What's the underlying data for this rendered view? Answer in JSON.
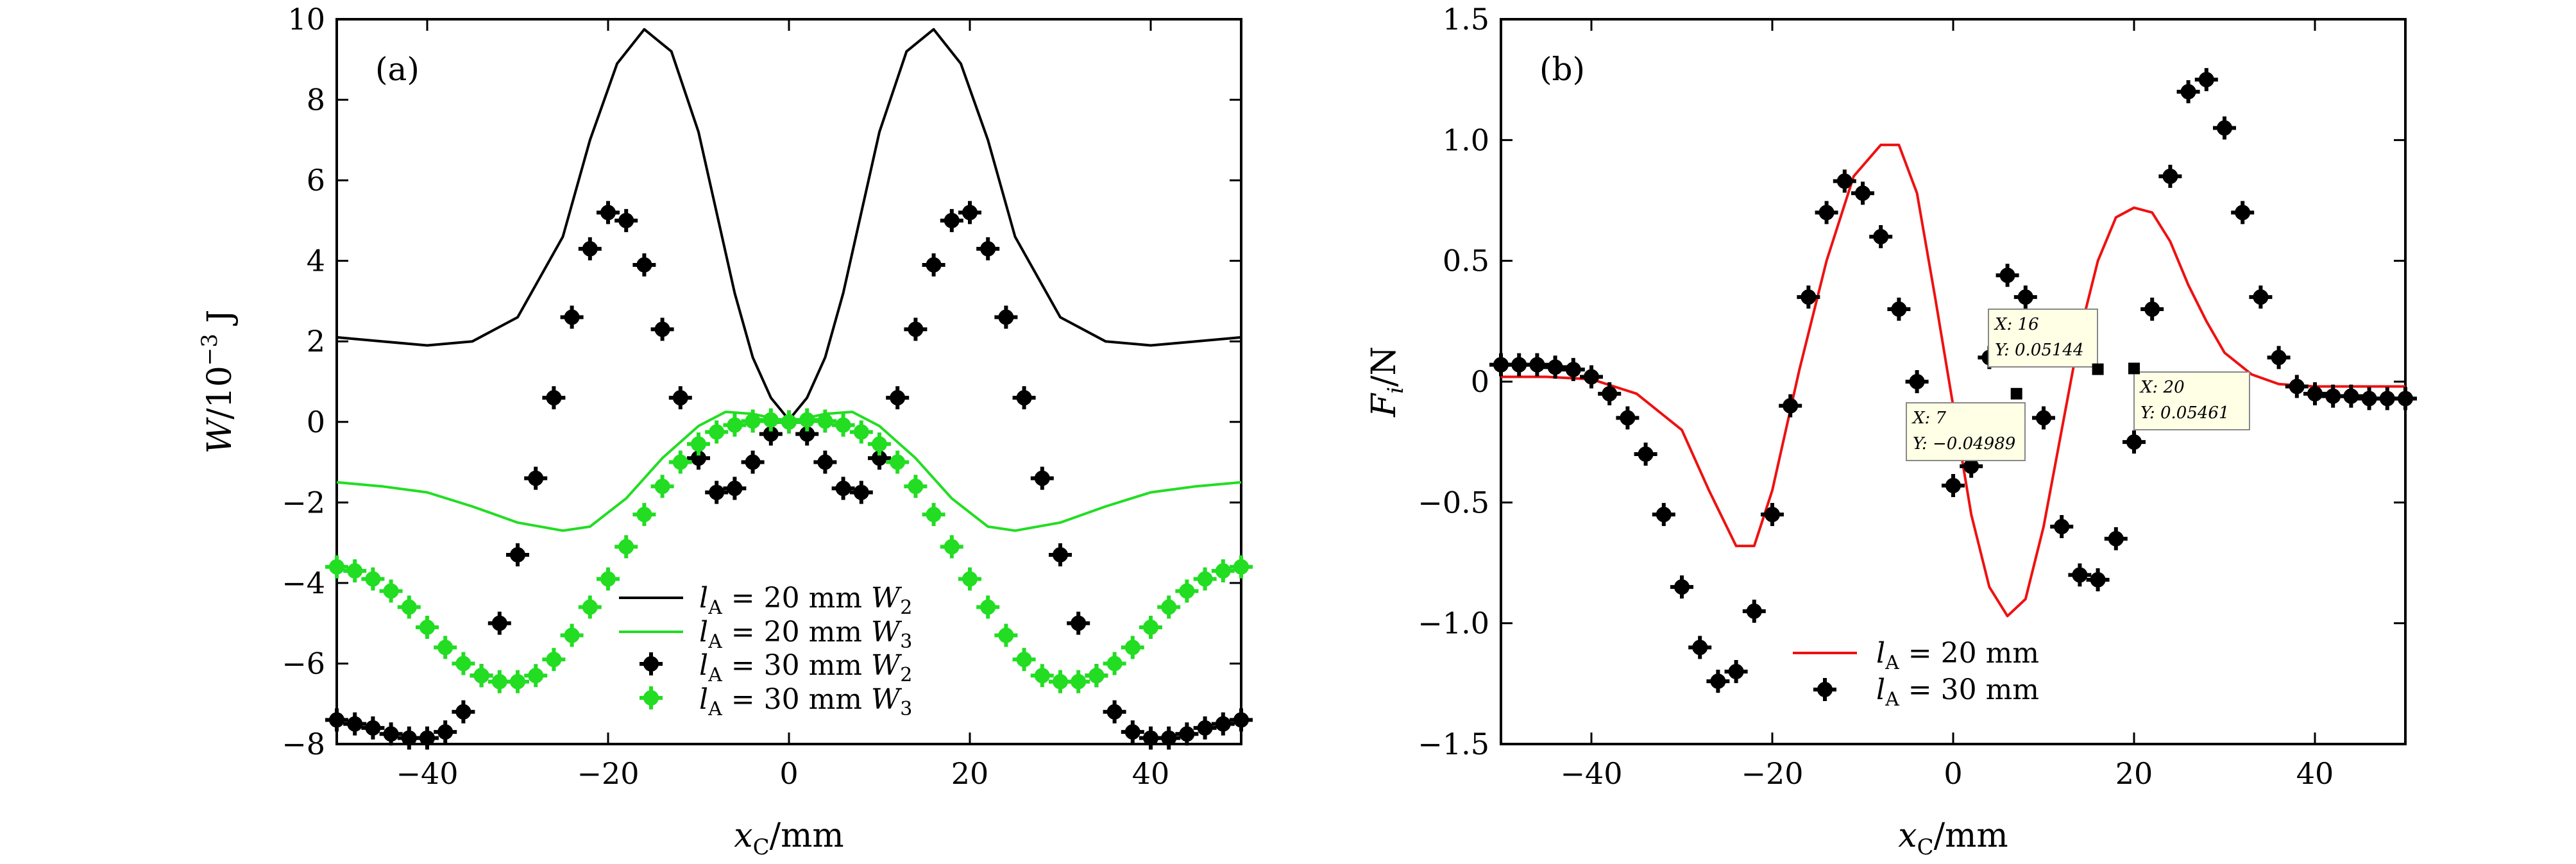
{
  "chart_data": [
    {
      "panel_label": "(a)",
      "type": "line",
      "xlabel": "x_C/mm",
      "ylabel": "W/10^-3 J",
      "xlim": [
        -50,
        50
      ],
      "ylim": [
        -8,
        10
      ],
      "xticks": [
        -40,
        -20,
        0,
        20,
        40
      ],
      "yticks": [
        -8,
        -6,
        -4,
        -2,
        0,
        2,
        4,
        6,
        8,
        10
      ],
      "tick_labels_x": [
        "−40",
        "−20",
        "0",
        "20",
        "40"
      ],
      "tick_labels_y": [
        "−8",
        "−6",
        "−4",
        "−2",
        "0",
        "2",
        "4",
        "6",
        "8",
        "10"
      ],
      "legend_position": "lower-center",
      "series": [
        {
          "name": "l_A = 20 mm W_2",
          "style": "line",
          "color": "#000000",
          "points": [
            [
              -50,
              2.1
            ],
            [
              -45,
              2.0
            ],
            [
              -40,
              1.9
            ],
            [
              -35,
              2.0
            ],
            [
              -30,
              2.6
            ],
            [
              -25,
              4.6
            ],
            [
              -22,
              7.0
            ],
            [
              -19,
              8.9
            ],
            [
              -16,
              9.75
            ],
            [
              -13,
              9.2
            ],
            [
              -10,
              7.2
            ],
            [
              -8,
              5.2
            ],
            [
              -6,
              3.2
            ],
            [
              -4,
              1.6
            ],
            [
              -2,
              0.6
            ],
            [
              0,
              0.05
            ],
            [
              2,
              0.6
            ],
            [
              4,
              1.6
            ],
            [
              6,
              3.2
            ],
            [
              8,
              5.2
            ],
            [
              10,
              7.2
            ],
            [
              13,
              9.2
            ],
            [
              16,
              9.75
            ],
            [
              19,
              8.9
            ],
            [
              22,
              7.0
            ],
            [
              25,
              4.6
            ],
            [
              30,
              2.6
            ],
            [
              35,
              2.0
            ],
            [
              40,
              1.9
            ],
            [
              45,
              2.0
            ],
            [
              50,
              2.1
            ]
          ]
        },
        {
          "name": "l_A = 20 mm W_3",
          "style": "line",
          "color": "#22dd22",
          "points": [
            [
              -50,
              -1.5
            ],
            [
              -45,
              -1.6
            ],
            [
              -40,
              -1.75
            ],
            [
              -35,
              -2.1
            ],
            [
              -30,
              -2.5
            ],
            [
              -25,
              -2.7
            ],
            [
              -22,
              -2.6
            ],
            [
              -18,
              -1.9
            ],
            [
              -14,
              -0.9
            ],
            [
              -10,
              -0.1
            ],
            [
              -7,
              0.25
            ],
            [
              -4,
              0.2
            ],
            [
              -2,
              0.1
            ],
            [
              0,
              0.0
            ],
            [
              2,
              0.1
            ],
            [
              4,
              0.2
            ],
            [
              7,
              0.25
            ],
            [
              10,
              -0.1
            ],
            [
              14,
              -0.9
            ],
            [
              18,
              -1.9
            ],
            [
              22,
              -2.6
            ],
            [
              25,
              -2.7
            ],
            [
              30,
              -2.5
            ],
            [
              35,
              -2.1
            ],
            [
              40,
              -1.75
            ],
            [
              45,
              -1.6
            ],
            [
              50,
              -1.5
            ]
          ]
        },
        {
          "name": "l_A = 30 mm W_2",
          "style": "marker",
          "color": "#000000",
          "points": [
            [
              -50,
              -7.4
            ],
            [
              -48,
              -7.5
            ],
            [
              -46,
              -7.6
            ],
            [
              -44,
              -7.75
            ],
            [
              -42,
              -7.85
            ],
            [
              -40,
              -7.85
            ],
            [
              -38,
              -7.7
            ],
            [
              -36,
              -7.2
            ],
            [
              -34,
              -6.3
            ],
            [
              -32,
              -5.0
            ],
            [
              -30,
              -3.3
            ],
            [
              -28,
              -1.4
            ],
            [
              -26,
              0.6
            ],
            [
              -24,
              2.6
            ],
            [
              -22,
              4.3
            ],
            [
              -20,
              5.2
            ],
            [
              -18,
              5.0
            ],
            [
              -16,
              3.9
            ],
            [
              -14,
              2.3
            ],
            [
              -12,
              0.6
            ],
            [
              -10,
              -0.9
            ],
            [
              -8,
              -1.75
            ],
            [
              -6,
              -1.65
            ],
            [
              -4,
              -1.0
            ],
            [
              -2,
              -0.3
            ],
            [
              0,
              0.0
            ],
            [
              2,
              -0.3
            ],
            [
              4,
              -1.0
            ],
            [
              6,
              -1.65
            ],
            [
              8,
              -1.75
            ],
            [
              10,
              -0.9
            ],
            [
              12,
              0.6
            ],
            [
              14,
              2.3
            ],
            [
              16,
              3.9
            ],
            [
              18,
              5.0
            ],
            [
              20,
              5.2
            ],
            [
              22,
              4.3
            ],
            [
              24,
              2.6
            ],
            [
              26,
              0.6
            ],
            [
              28,
              -1.4
            ],
            [
              30,
              -3.3
            ],
            [
              32,
              -5.0
            ],
            [
              34,
              -6.3
            ],
            [
              36,
              -7.2
            ],
            [
              38,
              -7.7
            ],
            [
              40,
              -7.85
            ],
            [
              42,
              -7.85
            ],
            [
              44,
              -7.75
            ],
            [
              46,
              -7.6
            ],
            [
              48,
              -7.5
            ],
            [
              50,
              -7.4
            ]
          ]
        },
        {
          "name": "l_A = 30 mm W_3",
          "style": "marker",
          "color": "#22dd22",
          "points": [
            [
              -50,
              -3.6
            ],
            [
              -48,
              -3.7
            ],
            [
              -46,
              -3.9
            ],
            [
              -44,
              -4.2
            ],
            [
              -42,
              -4.6
            ],
            [
              -40,
              -5.1
            ],
            [
              -38,
              -5.6
            ],
            [
              -36,
              -6.0
            ],
            [
              -34,
              -6.3
            ],
            [
              -32,
              -6.45
            ],
            [
              -30,
              -6.45
            ],
            [
              -28,
              -6.3
            ],
            [
              -26,
              -5.9
            ],
            [
              -24,
              -5.3
            ],
            [
              -22,
              -4.6
            ],
            [
              -20,
              -3.9
            ],
            [
              -18,
              -3.1
            ],
            [
              -16,
              -2.3
            ],
            [
              -14,
              -1.6
            ],
            [
              -12,
              -1.0
            ],
            [
              -10,
              -0.55
            ],
            [
              -8,
              -0.25
            ],
            [
              -6,
              -0.08
            ],
            [
              -4,
              0.02
            ],
            [
              -2,
              0.05
            ],
            [
              0,
              0.0
            ],
            [
              2,
              0.05
            ],
            [
              4,
              0.02
            ],
            [
              6,
              -0.08
            ],
            [
              8,
              -0.25
            ],
            [
              10,
              -0.55
            ],
            [
              12,
              -1.0
            ],
            [
              14,
              -1.6
            ],
            [
              16,
              -2.3
            ],
            [
              18,
              -3.1
            ],
            [
              20,
              -3.9
            ],
            [
              22,
              -4.6
            ],
            [
              24,
              -5.3
            ],
            [
              26,
              -5.9
            ],
            [
              28,
              -6.3
            ],
            [
              30,
              -6.45
            ],
            [
              32,
              -6.45
            ],
            [
              34,
              -6.3
            ],
            [
              36,
              -6.0
            ],
            [
              38,
              -5.6
            ],
            [
              40,
              -5.1
            ],
            [
              42,
              -4.6
            ],
            [
              44,
              -4.2
            ],
            [
              46,
              -3.9
            ],
            [
              48,
              -3.7
            ],
            [
              50,
              -3.6
            ]
          ]
        }
      ]
    },
    {
      "panel_label": "(b)",
      "type": "line",
      "xlabel": "x_C/mm",
      "ylabel": "F_i/N",
      "xlim": [
        -50,
        50
      ],
      "ylim": [
        -1.5,
        1.5
      ],
      "xticks": [
        -40,
        -20,
        0,
        20,
        40
      ],
      "yticks": [
        -1.5,
        -1.0,
        -0.5,
        0,
        0.5,
        1.0,
        1.5
      ],
      "tick_labels_x": [
        "−40",
        "−20",
        "0",
        "20",
        "40"
      ],
      "tick_labels_y": [
        "−1.5",
        "−1.0",
        "−0.5",
        "0",
        "0.5",
        "1.0",
        "1.5"
      ],
      "legend_position": "lower-center",
      "series": [
        {
          "name": "l_A = 20 mm",
          "style": "line",
          "color": "#ee1111",
          "points": [
            [
              -50,
              0.02
            ],
            [
              -45,
              0.02
            ],
            [
              -40,
              0.01
            ],
            [
              -35,
              -0.05
            ],
            [
              -30,
              -0.2
            ],
            [
              -27,
              -0.45
            ],
            [
              -24,
              -0.68
            ],
            [
              -22,
              -0.68
            ],
            [
              -20,
              -0.45
            ],
            [
              -17,
              0.05
            ],
            [
              -14,
              0.5
            ],
            [
              -11,
              0.85
            ],
            [
              -8,
              0.98
            ],
            [
              -6,
              0.98
            ],
            [
              -4,
              0.78
            ],
            [
              -2,
              0.35
            ],
            [
              0,
              -0.1
            ],
            [
              2,
              -0.55
            ],
            [
              4,
              -0.85
            ],
            [
              6,
              -0.97
            ],
            [
              8,
              -0.9
            ],
            [
              10,
              -0.6
            ],
            [
              12,
              -0.2
            ],
            [
              14,
              0.2
            ],
            [
              16,
              0.5
            ],
            [
              18,
              0.68
            ],
            [
              20,
              0.72
            ],
            [
              22,
              0.7
            ],
            [
              24,
              0.58
            ],
            [
              26,
              0.4
            ],
            [
              28,
              0.25
            ],
            [
              30,
              0.12
            ],
            [
              33,
              0.03
            ],
            [
              36,
              -0.01
            ],
            [
              40,
              -0.02
            ],
            [
              45,
              -0.02
            ],
            [
              50,
              -0.02
            ]
          ]
        },
        {
          "name": "l_A = 30 mm",
          "style": "marker",
          "color": "#000000",
          "points": [
            [
              -50,
              0.07
            ],
            [
              -48,
              0.07
            ],
            [
              -46,
              0.07
            ],
            [
              -44,
              0.06
            ],
            [
              -42,
              0.05
            ],
            [
              -40,
              0.02
            ],
            [
              -38,
              -0.05
            ],
            [
              -36,
              -0.15
            ],
            [
              -34,
              -0.3
            ],
            [
              -32,
              -0.55
            ],
            [
              -30,
              -0.85
            ],
            [
              -28,
              -1.1
            ],
            [
              -26,
              -1.24
            ],
            [
              -24,
              -1.2
            ],
            [
              -22,
              -0.95
            ],
            [
              -20,
              -0.55
            ],
            [
              -18,
              -0.1
            ],
            [
              -16,
              0.35
            ],
            [
              -14,
              0.7
            ],
            [
              -12,
              0.83
            ],
            [
              -10,
              0.78
            ],
            [
              -8,
              0.6
            ],
            [
              -6,
              0.3
            ],
            [
              -4,
              0.0
            ],
            [
              -2,
              -0.25
            ],
            [
              0,
              -0.43
            ],
            [
              2,
              -0.35
            ],
            [
              4,
              0.1
            ],
            [
              6,
              0.44
            ],
            [
              8,
              0.35
            ],
            [
              10,
              -0.15
            ],
            [
              12,
              -0.6
            ],
            [
              14,
              -0.8
            ],
            [
              16,
              -0.82
            ],
            [
              18,
              -0.65
            ],
            [
              20,
              -0.25
            ],
            [
              22,
              0.3
            ],
            [
              24,
              0.85
            ],
            [
              26,
              1.2
            ],
            [
              28,
              1.25
            ],
            [
              30,
              1.05
            ],
            [
              32,
              0.7
            ],
            [
              34,
              0.35
            ],
            [
              36,
              0.1
            ],
            [
              38,
              -0.02
            ],
            [
              40,
              -0.05
            ],
            [
              42,
              -0.06
            ],
            [
              44,
              -0.06
            ],
            [
              46,
              -0.07
            ],
            [
              48,
              -0.07
            ],
            [
              50,
              -0.07
            ]
          ]
        }
      ],
      "data_tips": [
        {
          "x": 7,
          "y": -0.04989,
          "label_x": "X: 7",
          "label_y": "Y: −0.04989"
        },
        {
          "x": 16,
          "y": 0.05144,
          "label_x": "X: 16",
          "label_y": "Y: 0.05144"
        },
        {
          "x": 20,
          "y": 0.05461,
          "label_x": "X: 20",
          "label_y": "Y: 0.05461"
        }
      ]
    }
  ]
}
